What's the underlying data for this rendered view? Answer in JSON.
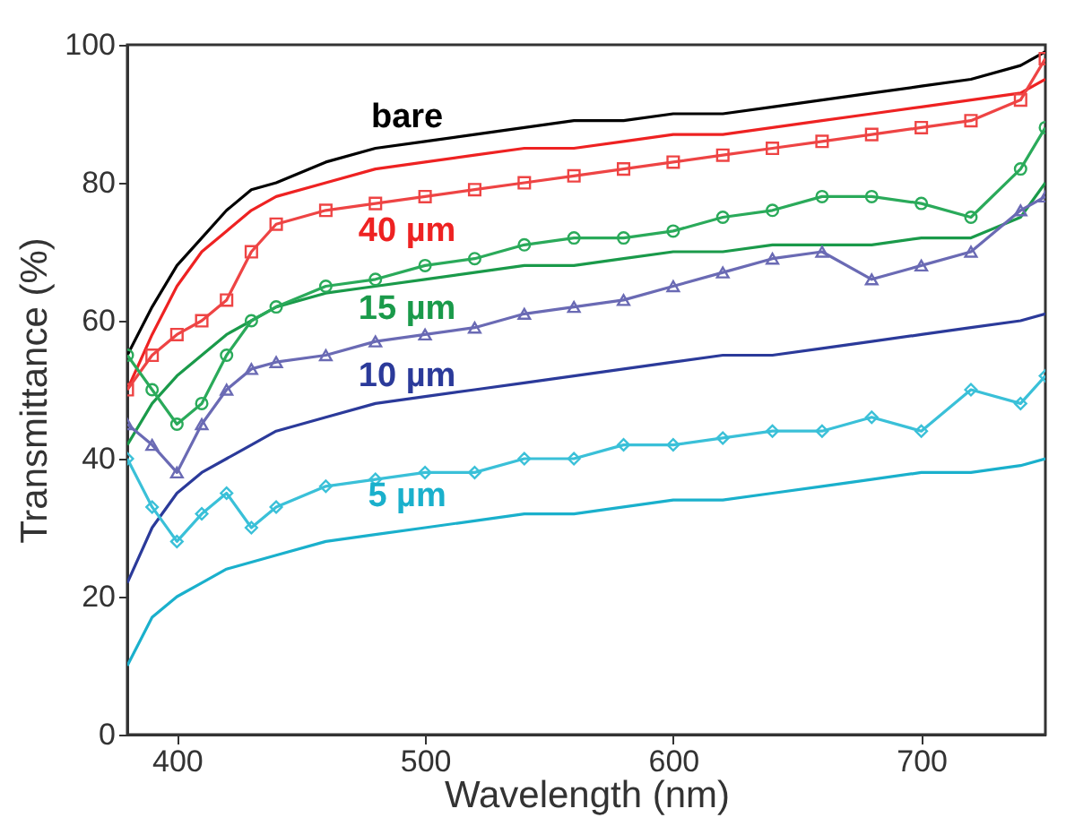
{
  "chart_data": {
    "type": "line",
    "xlabel": "Wavelength (nm)",
    "ylabel": "Transmittance (%)",
    "xlim": [
      380,
      750
    ],
    "ylim": [
      0,
      100
    ],
    "xticks": [
      400,
      500,
      600,
      700
    ],
    "yticks": [
      0,
      20,
      40,
      60,
      80,
      100
    ],
    "grid": false,
    "line_style": "solid",
    "x": [
      380,
      390,
      400,
      410,
      420,
      430,
      440,
      460,
      480,
      500,
      520,
      540,
      560,
      580,
      600,
      620,
      640,
      660,
      680,
      700,
      720,
      740,
      750
    ],
    "series": [
      {
        "name": "bare",
        "color": "#000000",
        "marker": "none",
        "values": [
          55,
          62,
          68,
          72,
          76,
          79,
          80,
          83,
          85,
          86,
          87,
          88,
          89,
          89,
          90,
          90,
          91,
          92,
          93,
          94,
          95,
          97,
          99
        ]
      },
      {
        "name": "40 µm",
        "color": "#ee2222",
        "marker": "none",
        "values": [
          50,
          58,
          65,
          70,
          73,
          76,
          78,
          80,
          82,
          83,
          84,
          85,
          85,
          86,
          87,
          87,
          88,
          89,
          90,
          91,
          92,
          93,
          95
        ]
      },
      {
        "color": "#ee4444",
        "marker": "square",
        "values": [
          50,
          55,
          58,
          60,
          63,
          70,
          74,
          76,
          77,
          78,
          79,
          80,
          81,
          82,
          83,
          84,
          85,
          86,
          87,
          88,
          89,
          92,
          98
        ]
      },
      {
        "name": "15 µm",
        "color": "#1a9a4a",
        "marker": "none",
        "values": [
          42,
          48,
          52,
          55,
          58,
          60,
          62,
          64,
          65,
          66,
          67,
          68,
          68,
          69,
          70,
          70,
          71,
          71,
          71,
          72,
          72,
          75,
          80
        ]
      },
      {
        "color": "#2aaa5a",
        "marker": "circle",
        "values": [
          55,
          50,
          45,
          48,
          55,
          60,
          62,
          65,
          66,
          68,
          69,
          71,
          72,
          72,
          73,
          75,
          76,
          78,
          78,
          77,
          75,
          82,
          88
        ]
      },
      {
        "color": "#6a6ab4",
        "marker": "triangle",
        "values": [
          45,
          42,
          38,
          45,
          50,
          53,
          54,
          55,
          57,
          58,
          59,
          61,
          62,
          63,
          65,
          67,
          69,
          70,
          66,
          68,
          70,
          76,
          78
        ]
      },
      {
        "name": "10 µm",
        "color": "#2b3a9a",
        "marker": "none",
        "values": [
          22,
          30,
          35,
          38,
          40,
          42,
          44,
          46,
          48,
          49,
          50,
          51,
          52,
          53,
          54,
          55,
          55,
          56,
          57,
          58,
          59,
          60,
          61
        ]
      },
      {
        "color": "#3ac0d8",
        "marker": "diamond",
        "values": [
          40,
          33,
          28,
          32,
          35,
          30,
          33,
          36,
          37,
          38,
          38,
          40,
          40,
          42,
          42,
          43,
          44,
          44,
          46,
          44,
          50,
          48,
          52
        ]
      },
      {
        "name": "5 µm",
        "color": "#1ab0cc",
        "marker": "none",
        "values": [
          10,
          17,
          20,
          22,
          24,
          25,
          26,
          28,
          29,
          30,
          31,
          32,
          32,
          33,
          34,
          34,
          35,
          36,
          37,
          38,
          38,
          39,
          40
        ]
      }
    ]
  }
}
